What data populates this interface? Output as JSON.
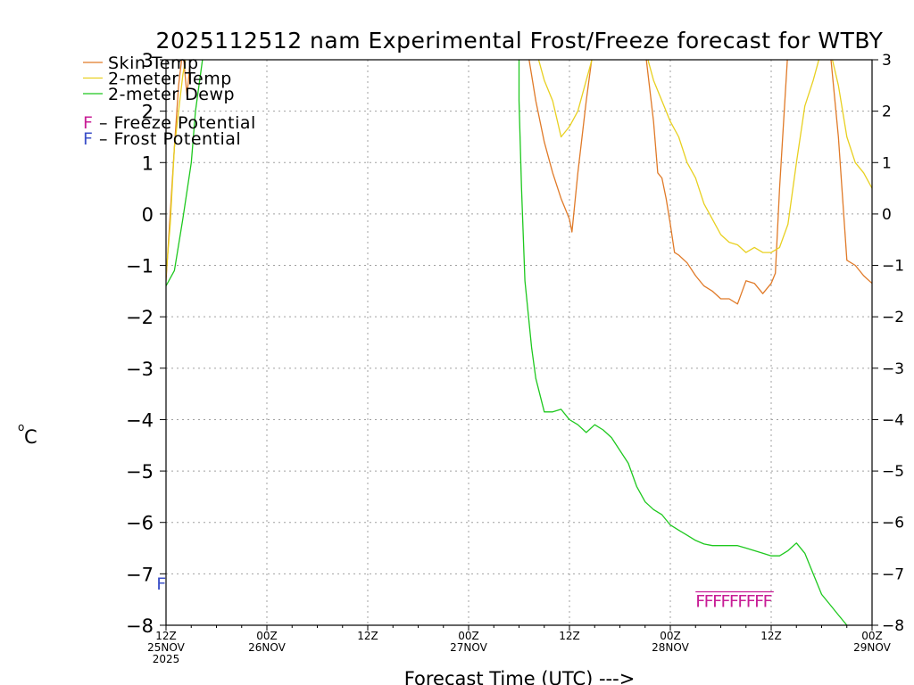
{
  "chart_data": {
    "type": "line",
    "title": "2025112512 nam Experimental Frost/Freeze forecast for WTBY",
    "xlabel": "Forecast Time (UTC) --->",
    "ylabel_main": "C",
    "ylabel_sup": "o",
    "x_unit": "forecast hour",
    "xlim": [
      0,
      84
    ],
    "ylim": [
      -8,
      3
    ],
    "y_ticks": [
      3,
      2,
      1,
      0,
      -1,
      -2,
      -3,
      -4,
      -5,
      -6,
      -7,
      -8
    ],
    "y_tick_labels": [
      "3",
      "2",
      "1",
      "0",
      "−1",
      "−2",
      "−3",
      "−4",
      "−5",
      "−6",
      "−7",
      "−8"
    ],
    "x_ticks": [
      {
        "hour": 0,
        "line1": "12Z",
        "line2": "25NOV",
        "line3": "2025"
      },
      {
        "hour": 12,
        "line1": "00Z",
        "line2": "26NOV",
        "line3": ""
      },
      {
        "hour": 24,
        "line1": "12Z",
        "line2": "",
        "line3": ""
      },
      {
        "hour": 36,
        "line1": "00Z",
        "line2": "27NOV",
        "line3": ""
      },
      {
        "hour": 48,
        "line1": "12Z",
        "line2": "",
        "line3": ""
      },
      {
        "hour": 60,
        "line1": "00Z",
        "line2": "28NOV",
        "line3": ""
      },
      {
        "hour": 72,
        "line1": "12Z",
        "line2": "",
        "line3": ""
      },
      {
        "hour": 84,
        "line1": "00Z",
        "line2": "29NOV",
        "line3": ""
      }
    ],
    "grid": true,
    "series": [
      {
        "name": "Skin Temp",
        "color": "#e07a28",
        "points": [
          [
            0,
            -1.3
          ],
          [
            0.5,
            0
          ],
          [
            1,
            1.3
          ],
          [
            1.5,
            2.5
          ],
          [
            2,
            3.2
          ],
          [
            2.5,
            2.3
          ],
          [
            3,
            3.2
          ],
          [
            43,
            3.2
          ],
          [
            44,
            2.2
          ],
          [
            45,
            1.4
          ],
          [
            46,
            0.8
          ],
          [
            47,
            0.3
          ],
          [
            48,
            -0.1
          ],
          [
            48.3,
            -0.35
          ],
          [
            49,
            0.8
          ],
          [
            50,
            2.2
          ],
          [
            50.8,
            3.2
          ],
          [
            57,
            3.2
          ],
          [
            58,
            1.8
          ],
          [
            58.5,
            0.8
          ],
          [
            59,
            0.7
          ],
          [
            59.5,
            0.3
          ],
          [
            60,
            -0.2
          ],
          [
            60.5,
            -0.75
          ],
          [
            61,
            -0.8
          ],
          [
            62,
            -0.95
          ],
          [
            63,
            -1.2
          ],
          [
            64,
            -1.4
          ],
          [
            65,
            -1.5
          ],
          [
            66,
            -1.65
          ],
          [
            67,
            -1.65
          ],
          [
            68,
            -1.75
          ],
          [
            69,
            -1.3
          ],
          [
            70,
            -1.35
          ],
          [
            71,
            -1.55
          ],
          [
            72,
            -1.35
          ],
          [
            72.5,
            -1.15
          ],
          [
            73,
            0.5
          ],
          [
            74,
            3.2
          ],
          [
            79,
            3.2
          ],
          [
            80,
            1.5
          ],
          [
            81,
            -0.9
          ],
          [
            82,
            -1.0
          ],
          [
            83,
            -1.2
          ],
          [
            84,
            -1.35
          ]
        ]
      },
      {
        "name": "2-meter Temp",
        "color": "#e8d020",
        "points": [
          [
            0,
            -1.2
          ],
          [
            0.5,
            -0.2
          ],
          [
            1,
            1.3
          ],
          [
            1.5,
            2.0
          ],
          [
            2,
            2.7
          ],
          [
            2.5,
            3.2
          ],
          [
            44,
            3.2
          ],
          [
            45,
            2.6
          ],
          [
            46,
            2.2
          ],
          [
            47,
            1.5
          ],
          [
            48,
            1.7
          ],
          [
            49,
            2.0
          ],
          [
            50,
            2.6
          ],
          [
            51,
            3.2
          ],
          [
            57,
            3.2
          ],
          [
            58,
            2.6
          ],
          [
            59,
            2.2
          ],
          [
            60,
            1.8
          ],
          [
            61,
            1.5
          ],
          [
            62,
            1.0
          ],
          [
            63,
            0.7
          ],
          [
            64,
            0.2
          ],
          [
            65,
            -0.1
          ],
          [
            66,
            -0.4
          ],
          [
            67,
            -0.55
          ],
          [
            68,
            -0.6
          ],
          [
            69,
            -0.75
          ],
          [
            70,
            -0.65
          ],
          [
            71,
            -0.75
          ],
          [
            72,
            -0.75
          ],
          [
            73,
            -0.65
          ],
          [
            74,
            -0.2
          ],
          [
            75,
            1.0
          ],
          [
            76,
            2.1
          ],
          [
            77,
            2.6
          ],
          [
            78,
            3.2
          ],
          [
            79,
            3.2
          ],
          [
            80,
            2.5
          ],
          [
            81,
            1.5
          ],
          [
            82,
            1.0
          ],
          [
            83,
            0.8
          ],
          [
            84,
            0.5
          ]
        ]
      },
      {
        "name": "2-meter Dewp",
        "color": "#1ec81e",
        "points": [
          [
            0,
            -1.4
          ],
          [
            1,
            -1.1
          ],
          [
            2,
            -0.1
          ],
          [
            3,
            1.0
          ],
          [
            3.5,
            2.0
          ],
          [
            4,
            2.6
          ],
          [
            4.5,
            3.2
          ],
          [
            42,
            3.2
          ],
          [
            42,
            2.2
          ],
          [
            42.3,
            0.5
          ],
          [
            42.7,
            -1.3
          ],
          [
            43.5,
            -2.6
          ],
          [
            44,
            -3.2
          ],
          [
            45,
            -3.85
          ],
          [
            46,
            -3.85
          ],
          [
            47,
            -3.8
          ],
          [
            48,
            -4.0
          ],
          [
            49,
            -4.1
          ],
          [
            50,
            -4.25
          ],
          [
            51,
            -4.1
          ],
          [
            52,
            -4.2
          ],
          [
            53,
            -4.35
          ],
          [
            54,
            -4.6
          ],
          [
            55,
            -4.85
          ],
          [
            56,
            -5.3
          ],
          [
            57,
            -5.6
          ],
          [
            58,
            -5.75
          ],
          [
            59,
            -5.85
          ],
          [
            60,
            -6.05
          ],
          [
            61,
            -6.15
          ],
          [
            62,
            -6.25
          ],
          [
            63,
            -6.35
          ],
          [
            64,
            -6.42
          ],
          [
            65,
            -6.45
          ],
          [
            66,
            -6.45
          ],
          [
            67,
            -6.45
          ],
          [
            68,
            -6.45
          ],
          [
            69,
            -6.5
          ],
          [
            70,
            -6.55
          ],
          [
            71,
            -6.6
          ],
          [
            72,
            -6.65
          ],
          [
            73,
            -6.65
          ],
          [
            74,
            -6.55
          ],
          [
            75,
            -6.4
          ],
          [
            76,
            -6.6
          ],
          [
            77,
            -7.0
          ],
          [
            78,
            -7.4
          ],
          [
            79,
            -7.6
          ],
          [
            80,
            -7.8
          ],
          [
            81,
            -8.0
          ]
        ]
      }
    ],
    "freeze_markers": {
      "symbol": "F",
      "color": "#c81e96",
      "y": -7.35,
      "hours": [
        63,
        64,
        65,
        66,
        67,
        68,
        69,
        70,
        71
      ],
      "bar_x": [
        63,
        72.3
      ]
    },
    "frost_markers": {
      "symbol": "F",
      "color": "#3c50c8",
      "y": -7.1,
      "hours": [
        -0.5
      ]
    },
    "legend": {
      "placement": "top-left",
      "entries": [
        {
          "label": "Skin Temp",
          "color": "#e07a28"
        },
        {
          "label": "2-meter Temp",
          "color": "#e8d020"
        },
        {
          "label": "2-meter Dewp",
          "color": "#1ec81e"
        }
      ],
      "potentials": [
        {
          "symbol": "F",
          "text": " – Freeze Potential",
          "color": "#c81e96"
        },
        {
          "symbol": "F",
          "text": " – Frost Potential",
          "color": "#3c50c8"
        }
      ]
    }
  }
}
